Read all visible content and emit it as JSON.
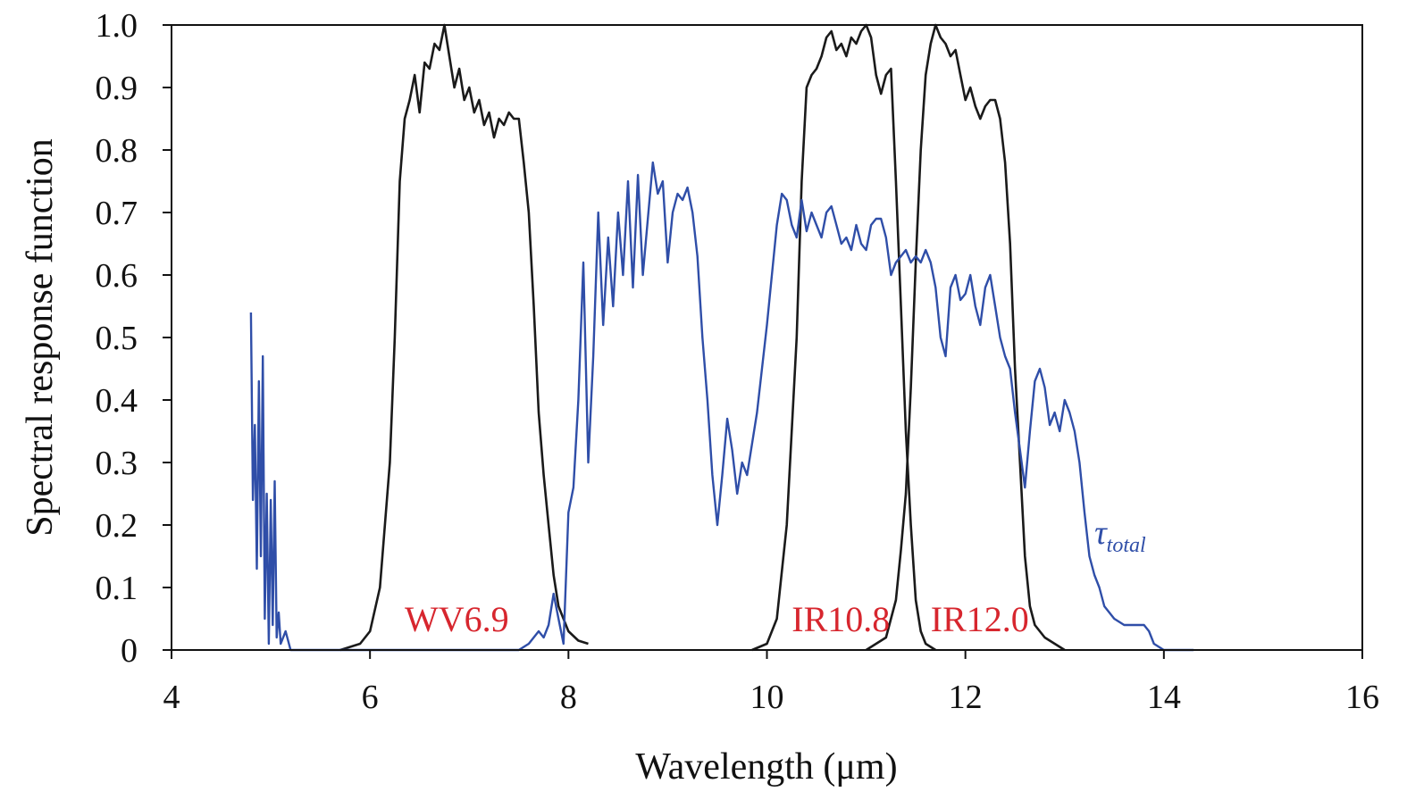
{
  "chart_data": {
    "type": "line",
    "title": "",
    "xlabel": "Wavelength (μm)",
    "ylabel": "Spectral response function",
    "xlim": [
      4,
      16
    ],
    "ylim": [
      0,
      1.0
    ],
    "xticks": [
      "4",
      "6",
      "8",
      "10",
      "12",
      "14",
      "16"
    ],
    "yticks": [
      "0",
      "0.1",
      "0.2",
      "0.3",
      "0.4",
      "0.5",
      "0.6",
      "0.7",
      "0.8",
      "0.9",
      "1.0"
    ],
    "grid": false,
    "colors": {
      "srf": "#1a1a1a",
      "tau": "#2f4ea8",
      "annotation": "#d7262e"
    },
    "annotations": [
      {
        "text": "WV6.9",
        "x": 6.35,
        "y": 0.03
      },
      {
        "text": "IR10.8",
        "x": 10.25,
        "y": 0.03
      },
      {
        "text": "IR12.0",
        "x": 11.65,
        "y": 0.03
      }
    ],
    "tau_label": {
      "symbol": "τ",
      "subscript": "total",
      "x": 13.3,
      "y": 0.17
    },
    "series": [
      {
        "name": "WV6.9",
        "color": "#1a1a1a",
        "points": [
          [
            5.7,
            0
          ],
          [
            5.9,
            0.01
          ],
          [
            6.0,
            0.03
          ],
          [
            6.1,
            0.1
          ],
          [
            6.2,
            0.3
          ],
          [
            6.25,
            0.5
          ],
          [
            6.3,
            0.75
          ],
          [
            6.35,
            0.85
          ],
          [
            6.4,
            0.88
          ],
          [
            6.45,
            0.92
          ],
          [
            6.5,
            0.86
          ],
          [
            6.55,
            0.94
          ],
          [
            6.6,
            0.93
          ],
          [
            6.65,
            0.97
          ],
          [
            6.7,
            0.96
          ],
          [
            6.75,
            1.0
          ],
          [
            6.8,
            0.95
          ],
          [
            6.85,
            0.9
          ],
          [
            6.9,
            0.93
          ],
          [
            6.95,
            0.88
          ],
          [
            7.0,
            0.9
          ],
          [
            7.05,
            0.86
          ],
          [
            7.1,
            0.88
          ],
          [
            7.15,
            0.84
          ],
          [
            7.2,
            0.86
          ],
          [
            7.25,
            0.82
          ],
          [
            7.3,
            0.85
          ],
          [
            7.35,
            0.84
          ],
          [
            7.4,
            0.86
          ],
          [
            7.45,
            0.85
          ],
          [
            7.5,
            0.85
          ],
          [
            7.55,
            0.78
          ],
          [
            7.6,
            0.7
          ],
          [
            7.65,
            0.55
          ],
          [
            7.7,
            0.38
          ],
          [
            7.75,
            0.28
          ],
          [
            7.8,
            0.2
          ],
          [
            7.85,
            0.12
          ],
          [
            7.9,
            0.07
          ],
          [
            8.0,
            0.03
          ],
          [
            8.1,
            0.015
          ],
          [
            8.2,
            0.01
          ]
        ]
      },
      {
        "name": "IR10.8",
        "color": "#1a1a1a",
        "points": [
          [
            9.85,
            0
          ],
          [
            10.0,
            0.01
          ],
          [
            10.1,
            0.05
          ],
          [
            10.2,
            0.2
          ],
          [
            10.3,
            0.5
          ],
          [
            10.35,
            0.75
          ],
          [
            10.4,
            0.9
          ],
          [
            10.45,
            0.92
          ],
          [
            10.5,
            0.93
          ],
          [
            10.55,
            0.95
          ],
          [
            10.6,
            0.98
          ],
          [
            10.65,
            0.99
          ],
          [
            10.7,
            0.96
          ],
          [
            10.75,
            0.97
          ],
          [
            10.8,
            0.95
          ],
          [
            10.85,
            0.98
          ],
          [
            10.9,
            0.97
          ],
          [
            10.95,
            0.99
          ],
          [
            11.0,
            1.0
          ],
          [
            11.05,
            0.98
          ],
          [
            11.1,
            0.92
          ],
          [
            11.15,
            0.89
          ],
          [
            11.2,
            0.92
          ],
          [
            11.25,
            0.93
          ],
          [
            11.3,
            0.75
          ],
          [
            11.35,
            0.55
          ],
          [
            11.4,
            0.35
          ],
          [
            11.45,
            0.2
          ],
          [
            11.5,
            0.08
          ],
          [
            11.55,
            0.03
          ],
          [
            11.6,
            0.01
          ],
          [
            11.7,
            0
          ]
        ]
      },
      {
        "name": "IR12.0",
        "color": "#1a1a1a",
        "points": [
          [
            11.0,
            0
          ],
          [
            11.2,
            0.02
          ],
          [
            11.3,
            0.08
          ],
          [
            11.35,
            0.16
          ],
          [
            11.4,
            0.25
          ],
          [
            11.45,
            0.42
          ],
          [
            11.5,
            0.62
          ],
          [
            11.55,
            0.8
          ],
          [
            11.6,
            0.92
          ],
          [
            11.65,
            0.97
          ],
          [
            11.7,
            1.0
          ],
          [
            11.75,
            0.98
          ],
          [
            11.8,
            0.97
          ],
          [
            11.85,
            0.95
          ],
          [
            11.9,
            0.96
          ],
          [
            11.95,
            0.92
          ],
          [
            12.0,
            0.88
          ],
          [
            12.05,
            0.9
          ],
          [
            12.1,
            0.87
          ],
          [
            12.15,
            0.85
          ],
          [
            12.2,
            0.87
          ],
          [
            12.25,
            0.88
          ],
          [
            12.3,
            0.88
          ],
          [
            12.35,
            0.85
          ],
          [
            12.4,
            0.78
          ],
          [
            12.45,
            0.65
          ],
          [
            12.5,
            0.45
          ],
          [
            12.55,
            0.3
          ],
          [
            12.6,
            0.15
          ],
          [
            12.65,
            0.07
          ],
          [
            12.7,
            0.04
          ],
          [
            12.8,
            0.02
          ],
          [
            13.0,
            0
          ]
        ]
      },
      {
        "name": "τtotal",
        "color": "#2f4ea8",
        "points": [
          [
            4.8,
            0.54
          ],
          [
            4.82,
            0.24
          ],
          [
            4.84,
            0.36
          ],
          [
            4.86,
            0.13
          ],
          [
            4.88,
            0.43
          ],
          [
            4.9,
            0.15
          ],
          [
            4.92,
            0.47
          ],
          [
            4.94,
            0.05
          ],
          [
            4.96,
            0.25
          ],
          [
            4.98,
            0.01
          ],
          [
            5.0,
            0.24
          ],
          [
            5.02,
            0.04
          ],
          [
            5.04,
            0.27
          ],
          [
            5.06,
            0.02
          ],
          [
            5.08,
            0.06
          ],
          [
            5.1,
            0.01
          ],
          [
            5.15,
            0.03
          ],
          [
            5.2,
            0.0
          ],
          [
            5.3,
            0.0
          ],
          [
            6.0,
            0
          ],
          [
            7.5,
            0
          ],
          [
            7.6,
            0.01
          ],
          [
            7.7,
            0.03
          ],
          [
            7.75,
            0.02
          ],
          [
            7.8,
            0.04
          ],
          [
            7.85,
            0.09
          ],
          [
            7.9,
            0.05
          ],
          [
            7.95,
            0.01
          ],
          [
            8.0,
            0.22
          ],
          [
            8.05,
            0.26
          ],
          [
            8.1,
            0.4
          ],
          [
            8.15,
            0.62
          ],
          [
            8.2,
            0.3
          ],
          [
            8.25,
            0.47
          ],
          [
            8.3,
            0.7
          ],
          [
            8.35,
            0.52
          ],
          [
            8.4,
            0.66
          ],
          [
            8.45,
            0.55
          ],
          [
            8.5,
            0.7
          ],
          [
            8.55,
            0.6
          ],
          [
            8.6,
            0.75
          ],
          [
            8.65,
            0.58
          ],
          [
            8.7,
            0.76
          ],
          [
            8.75,
            0.6
          ],
          [
            8.8,
            0.69
          ],
          [
            8.85,
            0.78
          ],
          [
            8.9,
            0.73
          ],
          [
            8.95,
            0.75
          ],
          [
            9.0,
            0.62
          ],
          [
            9.05,
            0.7
          ],
          [
            9.1,
            0.73
          ],
          [
            9.15,
            0.72
          ],
          [
            9.2,
            0.74
          ],
          [
            9.25,
            0.7
          ],
          [
            9.3,
            0.63
          ],
          [
            9.35,
            0.5
          ],
          [
            9.4,
            0.4
          ],
          [
            9.45,
            0.28
          ],
          [
            9.5,
            0.2
          ],
          [
            9.55,
            0.28
          ],
          [
            9.6,
            0.37
          ],
          [
            9.65,
            0.32
          ],
          [
            9.7,
            0.25
          ],
          [
            9.75,
            0.3
          ],
          [
            9.8,
            0.28
          ],
          [
            9.9,
            0.38
          ],
          [
            10.0,
            0.52
          ],
          [
            10.1,
            0.68
          ],
          [
            10.15,
            0.73
          ],
          [
            10.2,
            0.72
          ],
          [
            10.25,
            0.68
          ],
          [
            10.3,
            0.66
          ],
          [
            10.35,
            0.72
          ],
          [
            10.4,
            0.67
          ],
          [
            10.45,
            0.7
          ],
          [
            10.5,
            0.68
          ],
          [
            10.55,
            0.66
          ],
          [
            10.6,
            0.7
          ],
          [
            10.65,
            0.71
          ],
          [
            10.7,
            0.68
          ],
          [
            10.75,
            0.65
          ],
          [
            10.8,
            0.66
          ],
          [
            10.85,
            0.64
          ],
          [
            10.9,
            0.68
          ],
          [
            10.95,
            0.65
          ],
          [
            11.0,
            0.64
          ],
          [
            11.05,
            0.68
          ],
          [
            11.1,
            0.69
          ],
          [
            11.15,
            0.69
          ],
          [
            11.2,
            0.66
          ],
          [
            11.25,
            0.6
          ],
          [
            11.3,
            0.62
          ],
          [
            11.35,
            0.63
          ],
          [
            11.4,
            0.64
          ],
          [
            11.45,
            0.62
          ],
          [
            11.5,
            0.63
          ],
          [
            11.55,
            0.62
          ],
          [
            11.6,
            0.64
          ],
          [
            11.65,
            0.62
          ],
          [
            11.7,
            0.58
          ],
          [
            11.75,
            0.5
          ],
          [
            11.8,
            0.47
          ],
          [
            11.85,
            0.58
          ],
          [
            11.9,
            0.6
          ],
          [
            11.95,
            0.56
          ],
          [
            12.0,
            0.57
          ],
          [
            12.05,
            0.6
          ],
          [
            12.1,
            0.55
          ],
          [
            12.15,
            0.52
          ],
          [
            12.2,
            0.58
          ],
          [
            12.25,
            0.6
          ],
          [
            12.3,
            0.55
          ],
          [
            12.35,
            0.5
          ],
          [
            12.4,
            0.47
          ],
          [
            12.45,
            0.45
          ],
          [
            12.5,
            0.38
          ],
          [
            12.55,
            0.32
          ],
          [
            12.6,
            0.26
          ],
          [
            12.65,
            0.35
          ],
          [
            12.7,
            0.43
          ],
          [
            12.75,
            0.45
          ],
          [
            12.8,
            0.42
          ],
          [
            12.85,
            0.36
          ],
          [
            12.9,
            0.38
          ],
          [
            12.95,
            0.35
          ],
          [
            13.0,
            0.4
          ],
          [
            13.05,
            0.38
          ],
          [
            13.1,
            0.35
          ],
          [
            13.15,
            0.3
          ],
          [
            13.2,
            0.22
          ],
          [
            13.25,
            0.15
          ],
          [
            13.3,
            0.12
          ],
          [
            13.35,
            0.1
          ],
          [
            13.4,
            0.07
          ],
          [
            13.5,
            0.05
          ],
          [
            13.6,
            0.04
          ],
          [
            13.7,
            0.04
          ],
          [
            13.8,
            0.04
          ],
          [
            13.85,
            0.03
          ],
          [
            13.9,
            0.01
          ],
          [
            14.0,
            0.0
          ],
          [
            14.3,
            0
          ]
        ]
      }
    ]
  }
}
